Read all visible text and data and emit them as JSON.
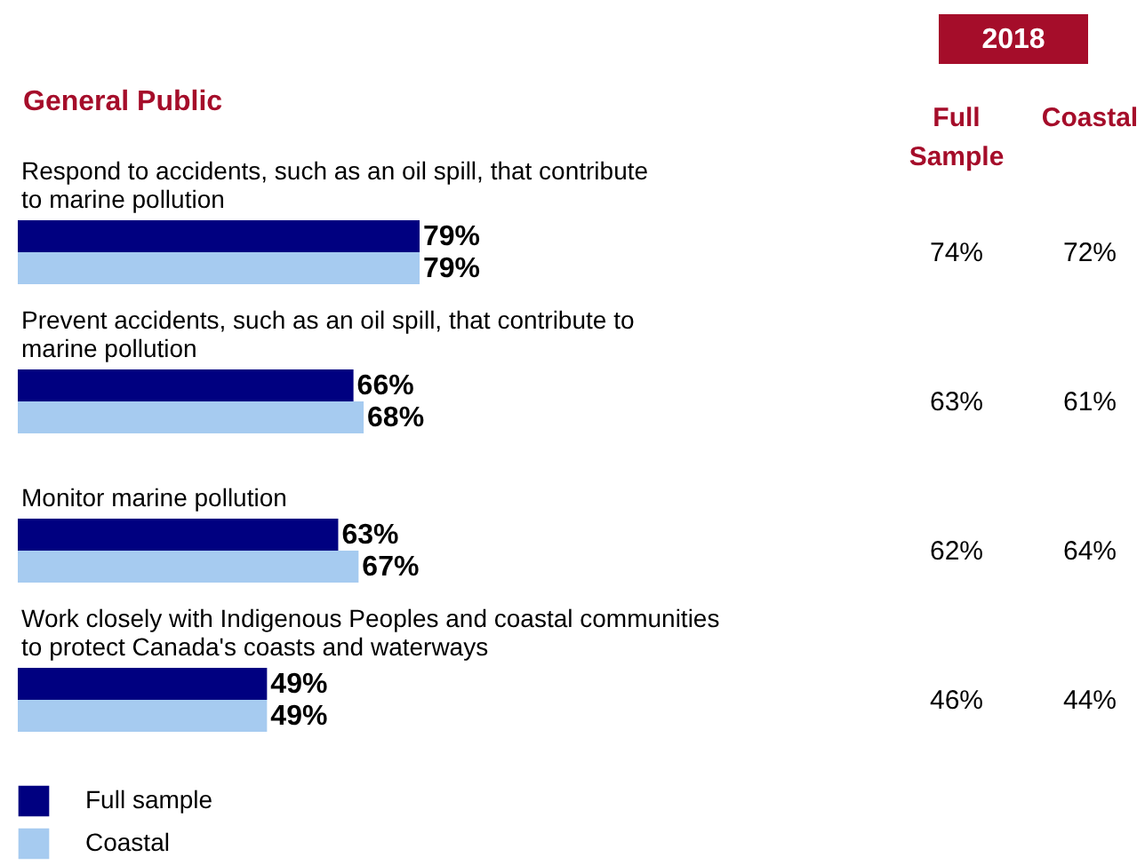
{
  "chart_data": {
    "type": "bar",
    "orientation": "horizontal",
    "title": "General Public",
    "categories": [
      "Respond to accidents, such as an oil spill, that contribute to marine pollution",
      "Prevent accidents, such as an oil spill, that contribute to marine pollution",
      "Monitor marine pollution",
      "Work closely with Indigenous Peoples and coastal communities to protect Canada's coasts and waterways"
    ],
    "series": [
      {
        "name": "Full sample",
        "color": "#000080",
        "values": [
          79,
          66,
          63,
          49
        ],
        "value_labels": [
          "79%",
          "66%",
          "63%",
          "49%"
        ]
      },
      {
        "name": "Coastal",
        "color": "#a6cbf0",
        "values": [
          79,
          68,
          67,
          49
        ],
        "value_labels": [
          "79%",
          "68%",
          "67%",
          "49%"
        ]
      }
    ],
    "annotations": [
      "2018",
      "Full Sample",
      "Coastal",
      "74%",
      "72%",
      "63%",
      "61%",
      "62%",
      "64%",
      "46%",
      "44%"
    ],
    "legend": "bottom left"
  }
}
